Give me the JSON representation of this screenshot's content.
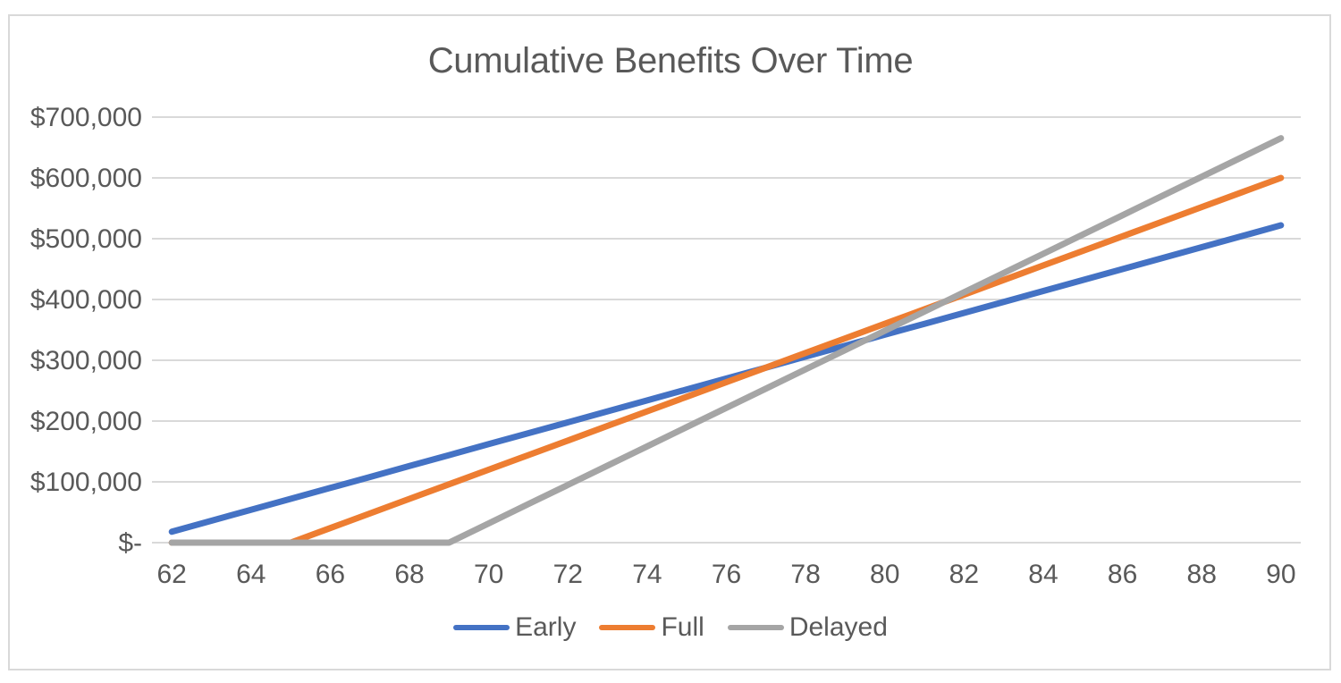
{
  "window": {
    "background": "#ffffff",
    "frame_border_color": "#D9D9D9"
  },
  "chart_data": {
    "type": "line",
    "title": "Cumulative Benefits Over Time",
    "xlabel": "",
    "ylabel": "",
    "grid": true,
    "legend_position": "bottom",
    "text_color": "#595959",
    "gridline_color": "#D9D9D9",
    "ylim": [
      0,
      700000
    ],
    "x": [
      62,
      63,
      64,
      65,
      66,
      67,
      68,
      69,
      70,
      71,
      72,
      73,
      74,
      75,
      76,
      77,
      78,
      79,
      80,
      81,
      82,
      83,
      84,
      85,
      86,
      87,
      88,
      89,
      90
    ],
    "xtick_labels": [
      "62",
      "64",
      "66",
      "68",
      "70",
      "72",
      "74",
      "76",
      "78",
      "80",
      "82",
      "84",
      "86",
      "88",
      "90"
    ],
    "yticks": [
      {
        "value": 0,
        "label": "$-"
      },
      {
        "value": 100000,
        "label": "$100,000"
      },
      {
        "value": 200000,
        "label": "$200,000"
      },
      {
        "value": 300000,
        "label": "$300,000"
      },
      {
        "value": 400000,
        "label": "$400,000"
      },
      {
        "value": 500000,
        "label": "$500,000"
      },
      {
        "value": 600000,
        "label": "$600,000"
      },
      {
        "value": 700000,
        "label": "$700,000"
      }
    ],
    "series": [
      {
        "name": "Early",
        "color": "#4472C4",
        "values": [
          18000,
          36000,
          54000,
          72000,
          90000,
          108000,
          126000,
          144000,
          162000,
          180000,
          198000,
          216000,
          234000,
          252000,
          270000,
          288000,
          306000,
          324000,
          342000,
          360000,
          378000,
          396000,
          414000,
          432000,
          450000,
          468000,
          486000,
          504000,
          522000
        ]
      },
      {
        "name": "Full",
        "color": "#ED7D31",
        "values": [
          0,
          0,
          0,
          0,
          24000,
          48000,
          72000,
          96000,
          120000,
          144000,
          168000,
          192000,
          216000,
          240000,
          264000,
          288000,
          312000,
          336000,
          360000,
          384000,
          408000,
          432000,
          456000,
          480000,
          504000,
          528000,
          552000,
          576000,
          600000
        ]
      },
      {
        "name": "Delayed",
        "color": "#A5A5A5",
        "values": [
          0,
          0,
          0,
          0,
          0,
          0,
          0,
          0,
          31680,
          63360,
          95040,
          126720,
          158400,
          190080,
          221760,
          253440,
          285120,
          316800,
          348480,
          380160,
          411840,
          443520,
          475200,
          506880,
          538560,
          570240,
          601920,
          633600,
          665280
        ]
      }
    ]
  }
}
